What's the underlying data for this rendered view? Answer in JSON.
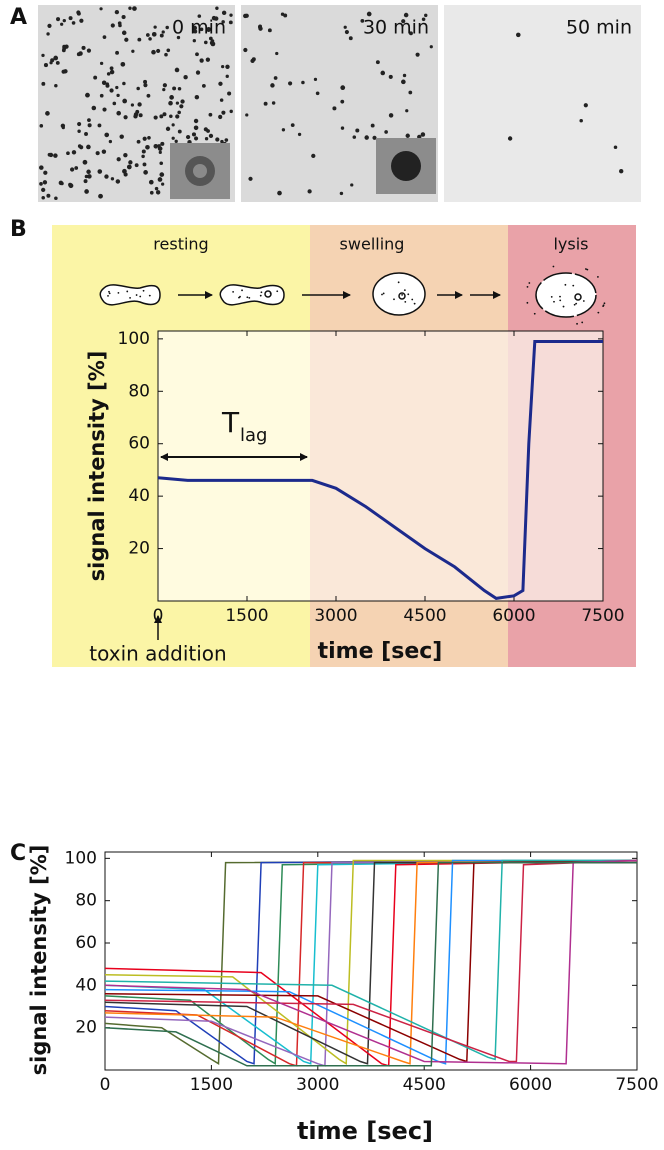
{
  "panel_labels": [
    "A",
    "B",
    "C"
  ],
  "images": {
    "times": [
      "0 min",
      "30 min",
      "50 min"
    ]
  },
  "chart_data": [
    {
      "type": "line",
      "color": "#1c2a8c",
      "phases": [
        "resting",
        "swelling",
        "lysis"
      ],
      "annotation": {
        "main": "T",
        "sub": "lag"
      },
      "note": "toxin addition",
      "xlabel": "time [sec]",
      "ylabel": "signal intensity [%]",
      "x": [
        0,
        500,
        1000,
        1500,
        2000,
        2600,
        3000,
        3500,
        4000,
        4500,
        5000,
        5500,
        5700,
        6000,
        6150,
        6250,
        6350,
        7000,
        7500
      ],
      "values": [
        47,
        46,
        46,
        46,
        46,
        46,
        43,
        36,
        28,
        20,
        13,
        4,
        1,
        2,
        4,
        60,
        99,
        99,
        99
      ],
      "xlim": [
        0,
        7500
      ],
      "ylim": [
        0,
        103
      ],
      "xticks": [
        0,
        1500,
        3000,
        4500,
        6000,
        7500
      ],
      "yticks": [
        20,
        40,
        60,
        80,
        100
      ]
    },
    {
      "type": "line",
      "xlabel": "time [sec]",
      "ylabel": "signal intensity [%]",
      "xlim": [
        0,
        7500
      ],
      "ylim": [
        0,
        103
      ],
      "xticks": [
        0,
        1500,
        3000,
        4500,
        6000,
        7500
      ],
      "yticks": [
        20,
        40,
        60,
        80,
        100
      ],
      "series": [
        {
          "color": "#556b2f",
          "x": [
            0,
            800,
            1500,
            1600,
            1700,
            7500
          ],
          "values": [
            22,
            20,
            5,
            3,
            98,
            99
          ]
        },
        {
          "color": "#1f3fb8",
          "x": [
            0,
            1000,
            2000,
            2100,
            2200,
            7500
          ],
          "values": [
            30,
            28,
            4,
            3,
            98,
            99
          ]
        },
        {
          "color": "#2e8b57",
          "x": [
            0,
            1200,
            2300,
            2400,
            2500,
            7500
          ],
          "values": [
            35,
            33,
            5,
            3,
            97,
            99
          ]
        },
        {
          "color": "#d62728",
          "x": [
            0,
            1300,
            2600,
            2700,
            2800,
            7500
          ],
          "values": [
            28,
            26,
            3,
            2,
            98,
            98
          ]
        },
        {
          "color": "#17becf",
          "x": [
            0,
            1400,
            2800,
            2900,
            3000,
            7500
          ],
          "values": [
            40,
            38,
            4,
            3,
            97,
            99
          ]
        },
        {
          "color": "#9467bd",
          "x": [
            0,
            1500,
            3000,
            3100,
            3200,
            7500
          ],
          "values": [
            25,
            23,
            3,
            2,
            98,
            99
          ]
        },
        {
          "color": "#bcbd22",
          "x": [
            0,
            1800,
            3300,
            3400,
            3500,
            7500
          ],
          "values": [
            45,
            44,
            5,
            3,
            99,
            99
          ]
        },
        {
          "color": "#333333",
          "x": [
            0,
            2000,
            3600,
            3700,
            3800,
            7500
          ],
          "values": [
            32,
            30,
            4,
            3,
            98,
            98
          ]
        },
        {
          "color": "#e8001c",
          "x": [
            0,
            2200,
            3900,
            4000,
            4100,
            7500
          ],
          "values": [
            48,
            46,
            3,
            2,
            97,
            99
          ]
        },
        {
          "color": "#ff7f0e",
          "x": [
            0,
            2400,
            4200,
            4300,
            4400,
            7500
          ],
          "values": [
            27,
            25,
            4,
            3,
            98,
            99
          ]
        },
        {
          "color": "#1e90ff",
          "x": [
            0,
            2600,
            4700,
            4800,
            4900,
            7500
          ],
          "values": [
            38,
            37,
            4,
            3,
            99,
            99
          ]
        },
        {
          "color": "#8b0000",
          "x": [
            0,
            3000,
            5000,
            5100,
            5200,
            7500
          ],
          "values": [
            36,
            35,
            5,
            4,
            98,
            99
          ]
        },
        {
          "color": "#20b2aa",
          "x": [
            0,
            3200,
            5400,
            5500,
            5600,
            7500
          ],
          "values": [
            42,
            40,
            6,
            5,
            99,
            99
          ]
        },
        {
          "color": "#cc2244",
          "x": [
            0,
            3500,
            5700,
            5800,
            5900,
            7500
          ],
          "values": [
            33,
            31,
            4,
            4,
            97,
            99
          ]
        },
        {
          "color": "#b03090",
          "x": [
            0,
            2000,
            4500,
            6500,
            6600,
            7500
          ],
          "values": [
            40,
            38,
            4,
            3,
            98,
            99
          ]
        },
        {
          "color": "#2f6f4f",
          "x": [
            0,
            1000,
            2000,
            4600,
            4700,
            7500
          ],
          "values": [
            20,
            18,
            2,
            2,
            98,
            98
          ]
        }
      ]
    }
  ]
}
